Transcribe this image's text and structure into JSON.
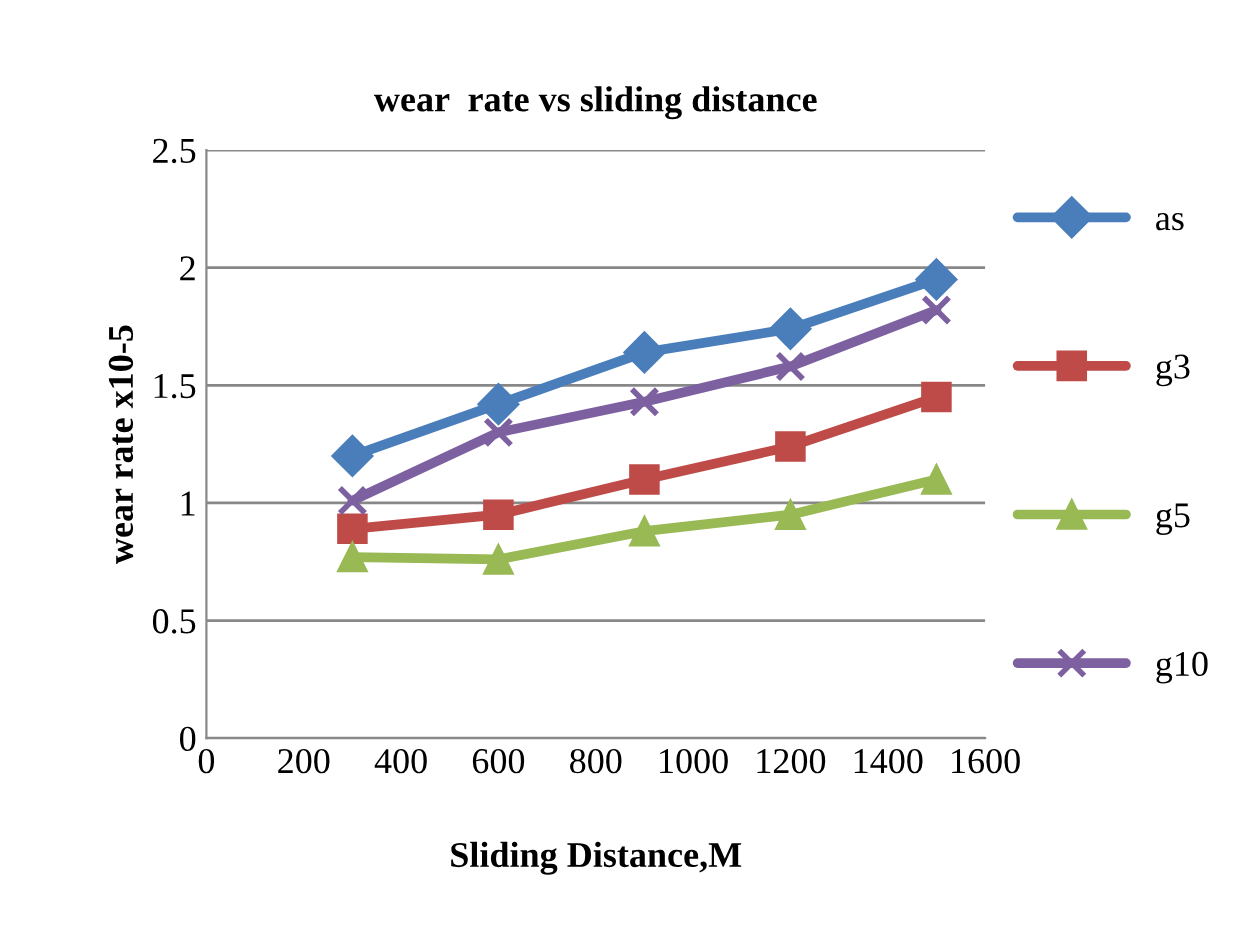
{
  "chart_data": {
    "type": "line",
    "title": "wear  rate vs sliding distance",
    "xlabel": "Sliding Distance,M",
    "ylabel": "wear rate x10-5",
    "x": [
      300,
      600,
      900,
      1200,
      1500
    ],
    "series": [
      {
        "name": "as",
        "color": "#4a7ebb",
        "marker": "diamond",
        "values": [
          1.2,
          1.42,
          1.64,
          1.74,
          1.95
        ]
      },
      {
        "name": "g3",
        "color": "#be4b48",
        "marker": "square",
        "values": [
          0.89,
          0.95,
          1.1,
          1.24,
          1.45
        ]
      },
      {
        "name": "g5",
        "color": "#98b954",
        "marker": "triangle",
        "values": [
          0.77,
          0.76,
          0.88,
          0.95,
          1.1
        ]
      },
      {
        "name": "g10",
        "color": "#7d60a0",
        "marker": "cross",
        "values": [
          1.01,
          1.3,
          1.43,
          1.58,
          1.82
        ]
      }
    ],
    "xlim": [
      0,
      1600
    ],
    "xticks": [
      0,
      200,
      400,
      600,
      800,
      1000,
      1200,
      1400,
      1600
    ],
    "ylim": [
      0,
      2.5
    ],
    "yticks": [
      0,
      0.5,
      1,
      1.5,
      2,
      2.5
    ],
    "grid": "y",
    "legend": "right",
    "line_style": "solid"
  }
}
